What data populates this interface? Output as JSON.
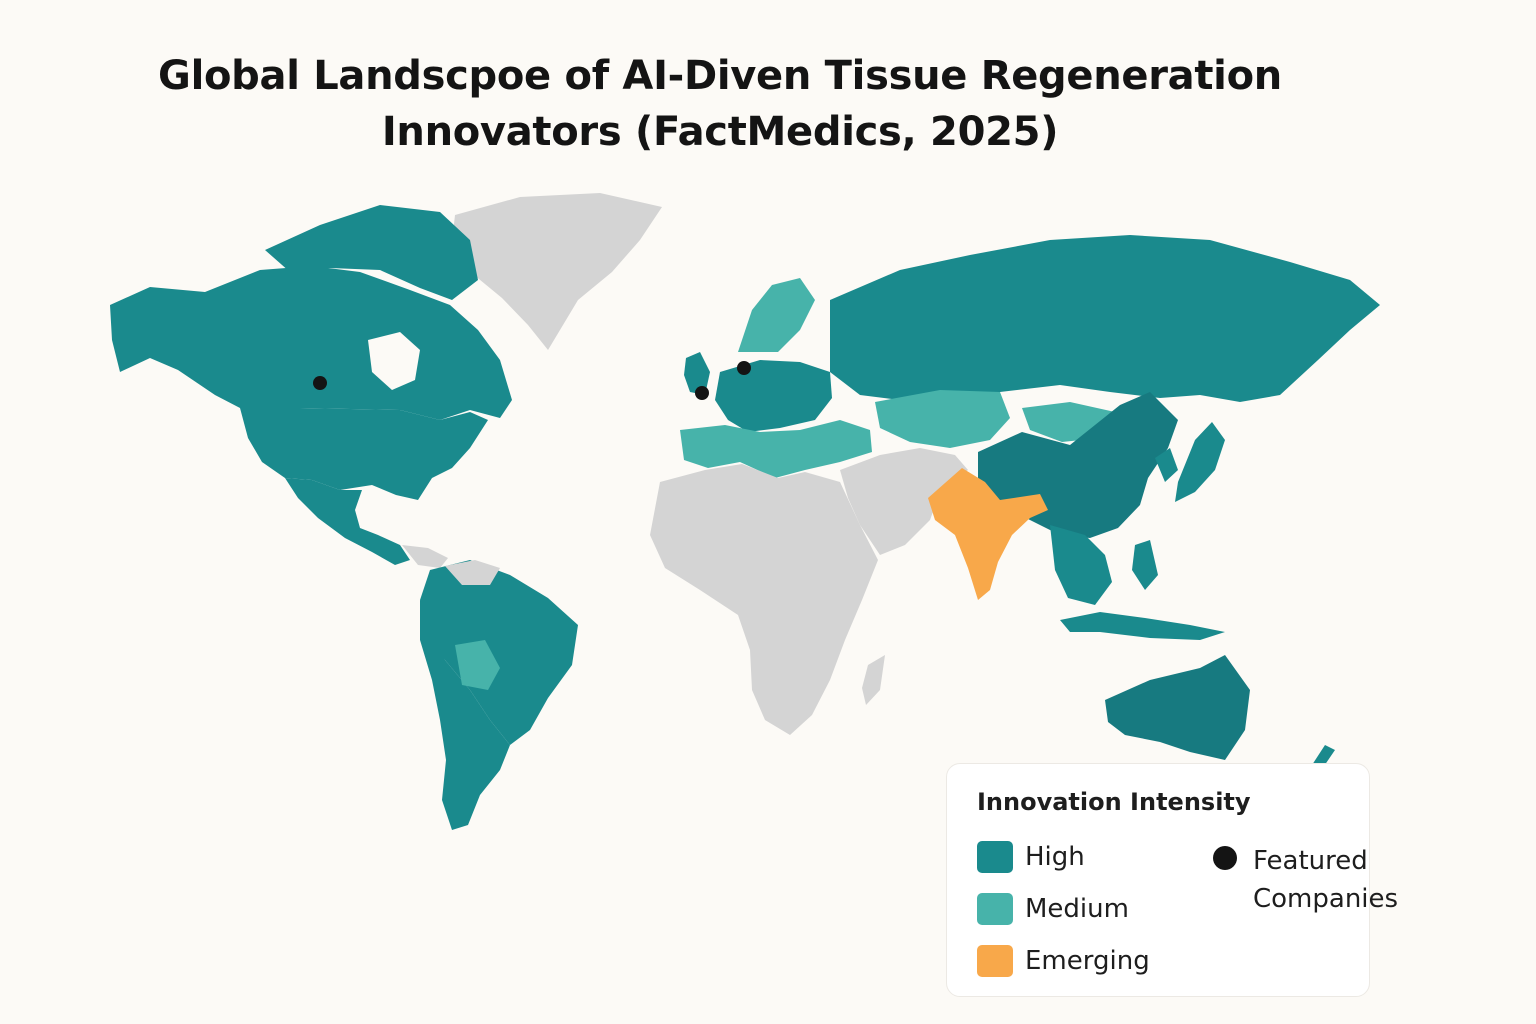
{
  "title": {
    "line1": "Global Landscpoe of AI-Diven Tissue Regeneration",
    "line2": "Innovators (FactMedics, 2025)"
  },
  "colors": {
    "high": "#1a8a8d",
    "high_dark": "#177a80",
    "medium": "#47b3aa",
    "emerging": "#f8a84a",
    "none": "#d4d4d4",
    "background": "#fcfaf6",
    "company_marker": "#141414"
  },
  "legend": {
    "title": "Innovation Intensity",
    "items": [
      {
        "key": "high",
        "label": "High"
      },
      {
        "key": "medium",
        "label": "Medium"
      },
      {
        "key": "emerging",
        "label": "Emerging"
      }
    ],
    "marker_label": "Featured Companies"
  },
  "regions": [
    {
      "name": "Canada",
      "level": "high"
    },
    {
      "name": "United States",
      "level": "high"
    },
    {
      "name": "Mexico",
      "level": "high"
    },
    {
      "name": "Brazil",
      "level": "high"
    },
    {
      "name": "Argentina",
      "level": "high"
    },
    {
      "name": "Bolivia",
      "level": "medium"
    },
    {
      "name": "Greenland",
      "level": "none"
    },
    {
      "name": "Western Europe",
      "level": "high"
    },
    {
      "name": "Southern Europe",
      "level": "medium"
    },
    {
      "name": "Scandinavia",
      "level": "medium"
    },
    {
      "name": "Russia",
      "level": "high"
    },
    {
      "name": "Kazakhstan",
      "level": "medium"
    },
    {
      "name": "Mongolia",
      "level": "medium"
    },
    {
      "name": "China",
      "level": "high"
    },
    {
      "name": "Japan",
      "level": "high"
    },
    {
      "name": "India",
      "level": "emerging"
    },
    {
      "name": "Southeast Asia",
      "level": "high"
    },
    {
      "name": "Australia",
      "level": "high"
    },
    {
      "name": "New Zealand",
      "level": "high"
    },
    {
      "name": "Africa",
      "level": "none"
    },
    {
      "name": "Middle East",
      "level": "none"
    }
  ],
  "featured_companies": [
    {
      "location": "Canada"
    },
    {
      "location": "United Kingdom"
    },
    {
      "location": "Denmark"
    }
  ]
}
